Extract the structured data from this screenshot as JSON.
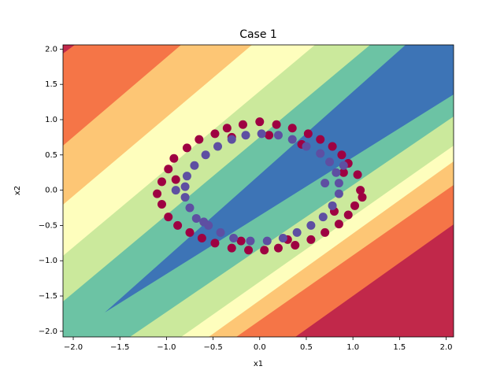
{
  "chart_data": {
    "type": "scatter",
    "title": "Case 1",
    "xlabel": "x1",
    "ylabel": "x2",
    "xlim": [
      -2.11,
      2.08
    ],
    "ylim": [
      -2.08,
      2.06
    ],
    "xticks": [
      {
        "value": -2.0,
        "label": "−2.0"
      },
      {
        "value": -1.5,
        "label": "−1.5"
      },
      {
        "value": -1.0,
        "label": "−1.0"
      },
      {
        "value": -0.5,
        "label": "−0.5"
      },
      {
        "value": 0.0,
        "label": "0.0"
      },
      {
        "value": 0.5,
        "label": "0.5"
      },
      {
        "value": 1.0,
        "label": "1.0"
      },
      {
        "value": 1.5,
        "label": "1.5"
      },
      {
        "value": 2.0,
        "label": "2.0"
      }
    ],
    "yticks": [
      {
        "value": -2.0,
        "label": "−2.0"
      },
      {
        "value": -1.5,
        "label": "−1.5"
      },
      {
        "value": -1.0,
        "label": "−1.0"
      },
      {
        "value": -0.5,
        "label": "−0.5"
      },
      {
        "value": 0.0,
        "label": "0.0"
      },
      {
        "value": 0.5,
        "label": "0.5"
      },
      {
        "value": 1.0,
        "label": "1.0"
      },
      {
        "value": 1.5,
        "label": "1.5"
      },
      {
        "value": 2.0,
        "label": "2.0"
      }
    ],
    "series": [
      {
        "color": "#9e0142",
        "x": [
          1.08,
          1.1,
          1.05,
          0.95,
          0.88,
          0.78,
          0.65,
          0.52,
          0.35,
          0.18,
          0.0,
          -0.18,
          -0.35,
          -0.48,
          -0.65,
          -0.78,
          -0.92,
          -0.98,
          -1.05,
          -1.1,
          -1.05,
          -0.98,
          -0.88,
          -0.75,
          -0.62,
          -0.48,
          -0.3,
          -0.12,
          0.05,
          0.2,
          0.38,
          0.55,
          0.7,
          0.85,
          0.95,
          1.02,
          0.9,
          -0.9,
          0.1,
          -0.3,
          0.45,
          0.3,
          -0.2,
          0.8
        ],
        "y": [
          0.0,
          -0.1,
          0.22,
          0.38,
          0.5,
          0.62,
          0.72,
          0.8,
          0.88,
          0.93,
          0.97,
          0.93,
          0.88,
          0.8,
          0.72,
          0.6,
          0.45,
          0.3,
          0.12,
          -0.05,
          -0.2,
          -0.38,
          -0.5,
          -0.6,
          -0.68,
          -0.75,
          -0.82,
          -0.85,
          -0.85,
          -0.82,
          -0.78,
          -0.7,
          -0.6,
          -0.48,
          -0.35,
          -0.22,
          0.25,
          0.15,
          0.78,
          0.75,
          0.65,
          -0.7,
          -0.72,
          -0.3
        ]
      },
      {
        "color": "#5e4fa2",
        "x": [
          0.85,
          0.82,
          0.75,
          0.65,
          0.5,
          0.35,
          0.2,
          0.02,
          -0.15,
          -0.3,
          -0.45,
          -0.58,
          -0.7,
          -0.78,
          -0.8,
          -0.8,
          -0.75,
          -0.68,
          -0.55,
          -0.42,
          -0.28,
          -0.1,
          0.08,
          0.25,
          0.4,
          0.55,
          0.68,
          0.78,
          0.85,
          0.9,
          -0.6,
          0.7,
          -0.9
        ],
        "y": [
          0.1,
          0.25,
          0.4,
          0.52,
          0.62,
          0.72,
          0.78,
          0.8,
          0.78,
          0.72,
          0.62,
          0.5,
          0.35,
          0.2,
          0.05,
          -0.1,
          -0.25,
          -0.4,
          -0.5,
          -0.6,
          -0.68,
          -0.72,
          -0.72,
          -0.68,
          -0.6,
          -0.5,
          -0.38,
          -0.22,
          -0.05,
          0.35,
          -0.45,
          0.1,
          0.0
        ]
      }
    ]
  }
}
